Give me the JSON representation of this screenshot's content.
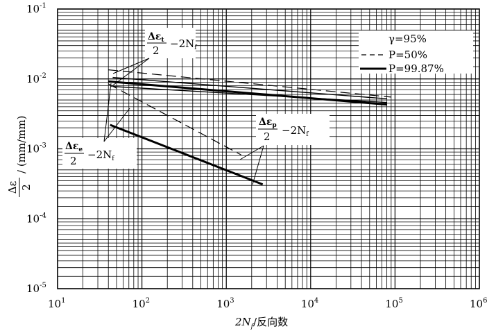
{
  "chart_data": {
    "type": "line",
    "xscale": "log",
    "yscale": "log",
    "xlim": [
      10,
      1000000
    ],
    "ylim": [
      1e-05,
      0.1
    ],
    "grid": true,
    "xlabel": {
      "main": "2N",
      "sub": "f",
      "rest": "/反向数"
    },
    "ylabel": {
      "num": "Δε",
      "den": "2",
      "unit": "/ (mm/mm)"
    },
    "x_ticks": [
      {
        "base": "10",
        "exp": "1"
      },
      {
        "base": "10",
        "exp": "2"
      },
      {
        "base": "10",
        "exp": "3"
      },
      {
        "base": "10",
        "exp": "4"
      },
      {
        "base": "10",
        "exp": "5"
      },
      {
        "base": "10",
        "exp": "6"
      }
    ],
    "y_ticks": [
      {
        "base": "10",
        "exp": "-1"
      },
      {
        "base": "10",
        "exp": "-2"
      },
      {
        "base": "10",
        "exp": "-3"
      },
      {
        "base": "10",
        "exp": "-4"
      },
      {
        "base": "10",
        "exp": "-5"
      }
    ],
    "legend": {
      "placement": "top-right",
      "line1": "γ=95%",
      "line2": "P=50%",
      "line3": "P=99.87%"
    },
    "annotations": [
      {
        "label_num": "Δε",
        "label_num_sub": "t",
        "label_den": "2",
        "label_rest": "−2N",
        "label_rest_sub": "f"
      },
      {
        "label_num": "Δε",
        "label_num_sub": "e",
        "label_den": "2",
        "label_rest": "−2N",
        "label_rest_sub": "f"
      },
      {
        "label_num": "Δε",
        "label_num_sub": "p",
        "label_den": "2",
        "label_rest": "−2N",
        "label_rest_sub": "f"
      }
    ],
    "series": [
      {
        "style": "dashed",
        "width": 1.2,
        "x": [
          40,
          90000
        ],
        "y": [
          0.0135,
          0.0055
        ]
      },
      {
        "style": "dashed",
        "width": 1.2,
        "x": [
          40,
          1500
        ],
        "y": [
          0.0085,
          0.00082
        ]
      },
      {
        "style": "solid",
        "width": 3,
        "x": [
          40,
          80000
        ],
        "y": [
          0.0092,
          0.0043
        ]
      },
      {
        "style": "solid",
        "width": 3,
        "x": [
          42,
          2700
        ],
        "y": [
          0.0022,
          0.00031
        ]
      },
      {
        "style": "solid",
        "width": 1.4,
        "x": [
          45,
          80000
        ],
        "y": [
          0.0078,
          0.0046
        ]
      },
      {
        "style": "solid",
        "width": 1.4,
        "x": [
          45,
          80000
        ],
        "y": [
          0.0105,
          0.0052
        ]
      }
    ]
  }
}
